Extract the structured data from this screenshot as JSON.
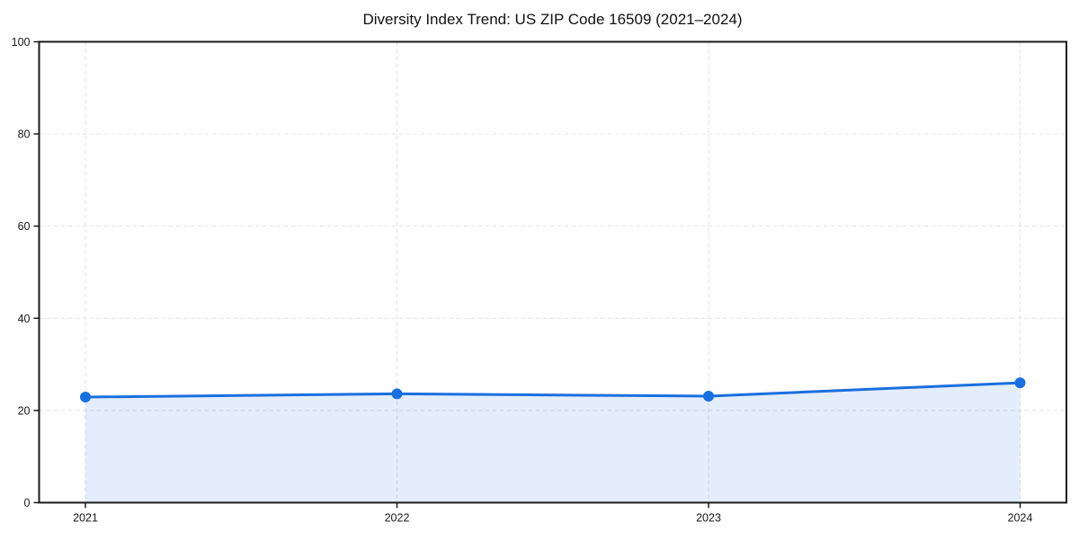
{
  "page": {
    "background": "#ffffff"
  },
  "chart_data": {
    "type": "line",
    "title": "Diversity Index Trend: US ZIP Code 16509 (2021–2024)",
    "x_categories": [
      "2021",
      "2022",
      "2023",
      "2024"
    ],
    "series": [
      {
        "name": "Diversity Index",
        "values": [
          22.9,
          23.6,
          23.1,
          26.0
        ]
      }
    ],
    "xlabel": "",
    "ylabel": "",
    "ylim": [
      0,
      100
    ],
    "yticks": [
      0,
      20,
      40,
      60,
      80,
      100
    ],
    "grid": true,
    "grid_style": "dashed",
    "legend_position": "none",
    "area_fill": true,
    "marker": "circle",
    "colors": {
      "line": "#1a6fe0",
      "marker": "#1a6fe0",
      "area_fill": "rgba(26,111,224,0.12)",
      "grid": "#e2e2e2",
      "spine": "#1a1a1a",
      "tick_text": "#1a1a1a",
      "title_text": "#111111",
      "background": "#ffffff"
    }
  }
}
